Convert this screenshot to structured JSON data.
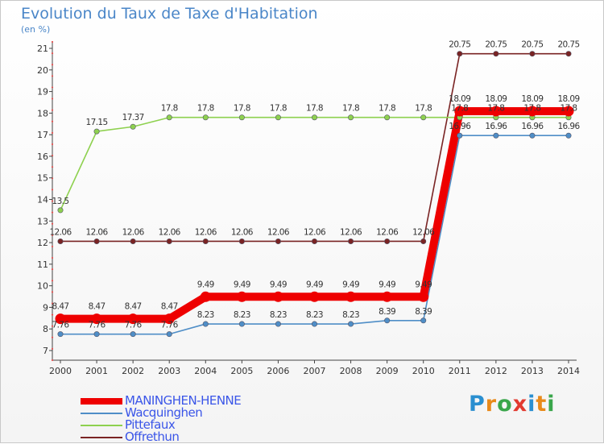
{
  "title": "Evolution du Taux de Taxe d'Habitation",
  "subtitle": "(en %)",
  "brand": {
    "text": "Proxiti",
    "letter_colors": [
      "#2a8fd0",
      "#e88a1a",
      "#3aa64b",
      "#e23a30",
      "#2a8fd0",
      "#e88a1a",
      "#3aa64b"
    ]
  },
  "chart_data": {
    "type": "line",
    "title": "Evolution du Taux de Taxe d'Habitation",
    "ylabel": "(en %)",
    "xlabel": "",
    "x": [
      "2000",
      "2001",
      "2002",
      "2003",
      "2004",
      "2005",
      "2006",
      "2007",
      "2008",
      "2009",
      "2010",
      "2011",
      "2012",
      "2013",
      "2014"
    ],
    "ylim": [
      7,
      21
    ],
    "yticks": [
      "7",
      "8",
      "9",
      "10",
      "11",
      "12",
      "13",
      "14",
      "15",
      "16",
      "17",
      "18",
      "19",
      "20",
      "21"
    ],
    "grid": false,
    "legend_position": "bottom-left",
    "series": [
      {
        "name": "MANINGHEN-HENNE",
        "color": "#ee0000",
        "emphasis": true,
        "values": [
          8.47,
          8.47,
          8.47,
          8.47,
          9.49,
          9.49,
          9.49,
          9.49,
          9.49,
          9.49,
          9.49,
          18.09,
          18.09,
          18.09,
          18.09
        ],
        "labels": [
          "8.47",
          "8.47",
          "8.47",
          "8.47",
          "9.49",
          "9.49",
          "9.49",
          "9.49",
          "9.49",
          "9.49",
          "9.49",
          "18.09",
          "18.09",
          "18.09",
          "18.09"
        ]
      },
      {
        "name": "Wacquinghen",
        "color": "#4f8ec7",
        "emphasis": false,
        "values": [
          7.76,
          7.76,
          7.76,
          7.76,
          8.23,
          8.23,
          8.23,
          8.23,
          8.23,
          8.39,
          8.39,
          16.96,
          16.96,
          16.96,
          16.96
        ],
        "labels": [
          "7.76",
          "7.76",
          "7.76",
          "7.76",
          "8.23",
          "8.23",
          "8.23",
          "8.23",
          "8.23",
          "8.39",
          "8.39",
          "16.96",
          "16.96",
          "16.96",
          "16.96"
        ]
      },
      {
        "name": "Pittefaux",
        "color": "#8ed14f",
        "emphasis": false,
        "values": [
          13.5,
          17.15,
          17.37,
          17.8,
          17.8,
          17.8,
          17.8,
          17.8,
          17.8,
          17.8,
          17.8,
          17.8,
          17.8,
          17.8,
          17.8
        ],
        "labels": [
          "13.5",
          "17.15",
          "17.37",
          "17.8",
          "17.8",
          "17.8",
          "17.8",
          "17.8",
          "17.8",
          "17.8",
          "17.8",
          "17.8",
          "17.8",
          "17.8",
          "17.8"
        ]
      },
      {
        "name": "Offrethun",
        "color": "#7a2424",
        "emphasis": false,
        "values": [
          12.06,
          12.06,
          12.06,
          12.06,
          12.06,
          12.06,
          12.06,
          12.06,
          12.06,
          12.06,
          12.06,
          20.75,
          20.75,
          20.75,
          20.75
        ],
        "labels": [
          "12.06",
          "12.06",
          "12.06",
          "12.06",
          "12.06",
          "12.06",
          "12.06",
          "12.06",
          "12.06",
          "12.06",
          "12.06",
          "20.75",
          "20.75",
          "20.75",
          "20.75"
        ]
      }
    ]
  }
}
